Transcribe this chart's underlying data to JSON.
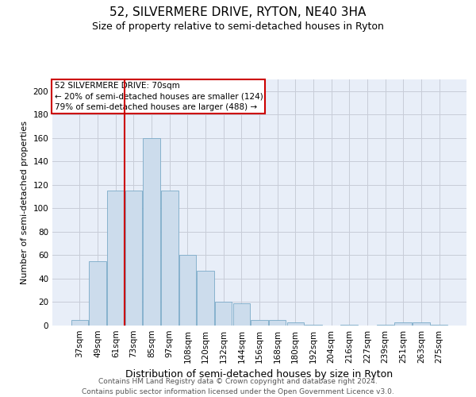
{
  "title": "52, SILVERMERE DRIVE, RYTON, NE40 3HA",
  "subtitle": "Size of property relative to semi-detached houses in Ryton",
  "xlabel": "Distribution of semi-detached houses by size in Ryton",
  "ylabel": "Number of semi-detached properties",
  "categories": [
    "37sqm",
    "49sqm",
    "61sqm",
    "73sqm",
    "85sqm",
    "97sqm",
    "108sqm",
    "120sqm",
    "132sqm",
    "144sqm",
    "156sqm",
    "168sqm",
    "180sqm",
    "192sqm",
    "204sqm",
    "216sqm",
    "227sqm",
    "239sqm",
    "251sqm",
    "263sqm",
    "275sqm"
  ],
  "values": [
    5,
    55,
    115,
    115,
    160,
    115,
    60,
    47,
    20,
    19,
    5,
    5,
    3,
    1,
    0,
    1,
    0,
    1,
    3,
    3,
    1
  ],
  "bar_color": "#ccdcec",
  "bar_edge_color": "#7aaac8",
  "highlight_index": 3,
  "highlight_line_color": "#cc0000",
  "annotation_text": "52 SILVERMERE DRIVE: 70sqm\n← 20% of semi-detached houses are smaller (124)\n79% of semi-detached houses are larger (488) →",
  "annotation_box_color": "#cc0000",
  "ylim": [
    0,
    210
  ],
  "yticks": [
    0,
    20,
    40,
    60,
    80,
    100,
    120,
    140,
    160,
    180,
    200
  ],
  "grid_color": "#c8ccd8",
  "bg_color": "#e8eef8",
  "footnote": "Contains HM Land Registry data © Crown copyright and database right 2024.\nContains public sector information licensed under the Open Government Licence v3.0.",
  "title_fontsize": 11,
  "subtitle_fontsize": 9,
  "xlabel_fontsize": 9,
  "ylabel_fontsize": 8,
  "tick_fontsize": 7.5,
  "annotation_fontsize": 7.5,
  "footnote_fontsize": 6.5
}
